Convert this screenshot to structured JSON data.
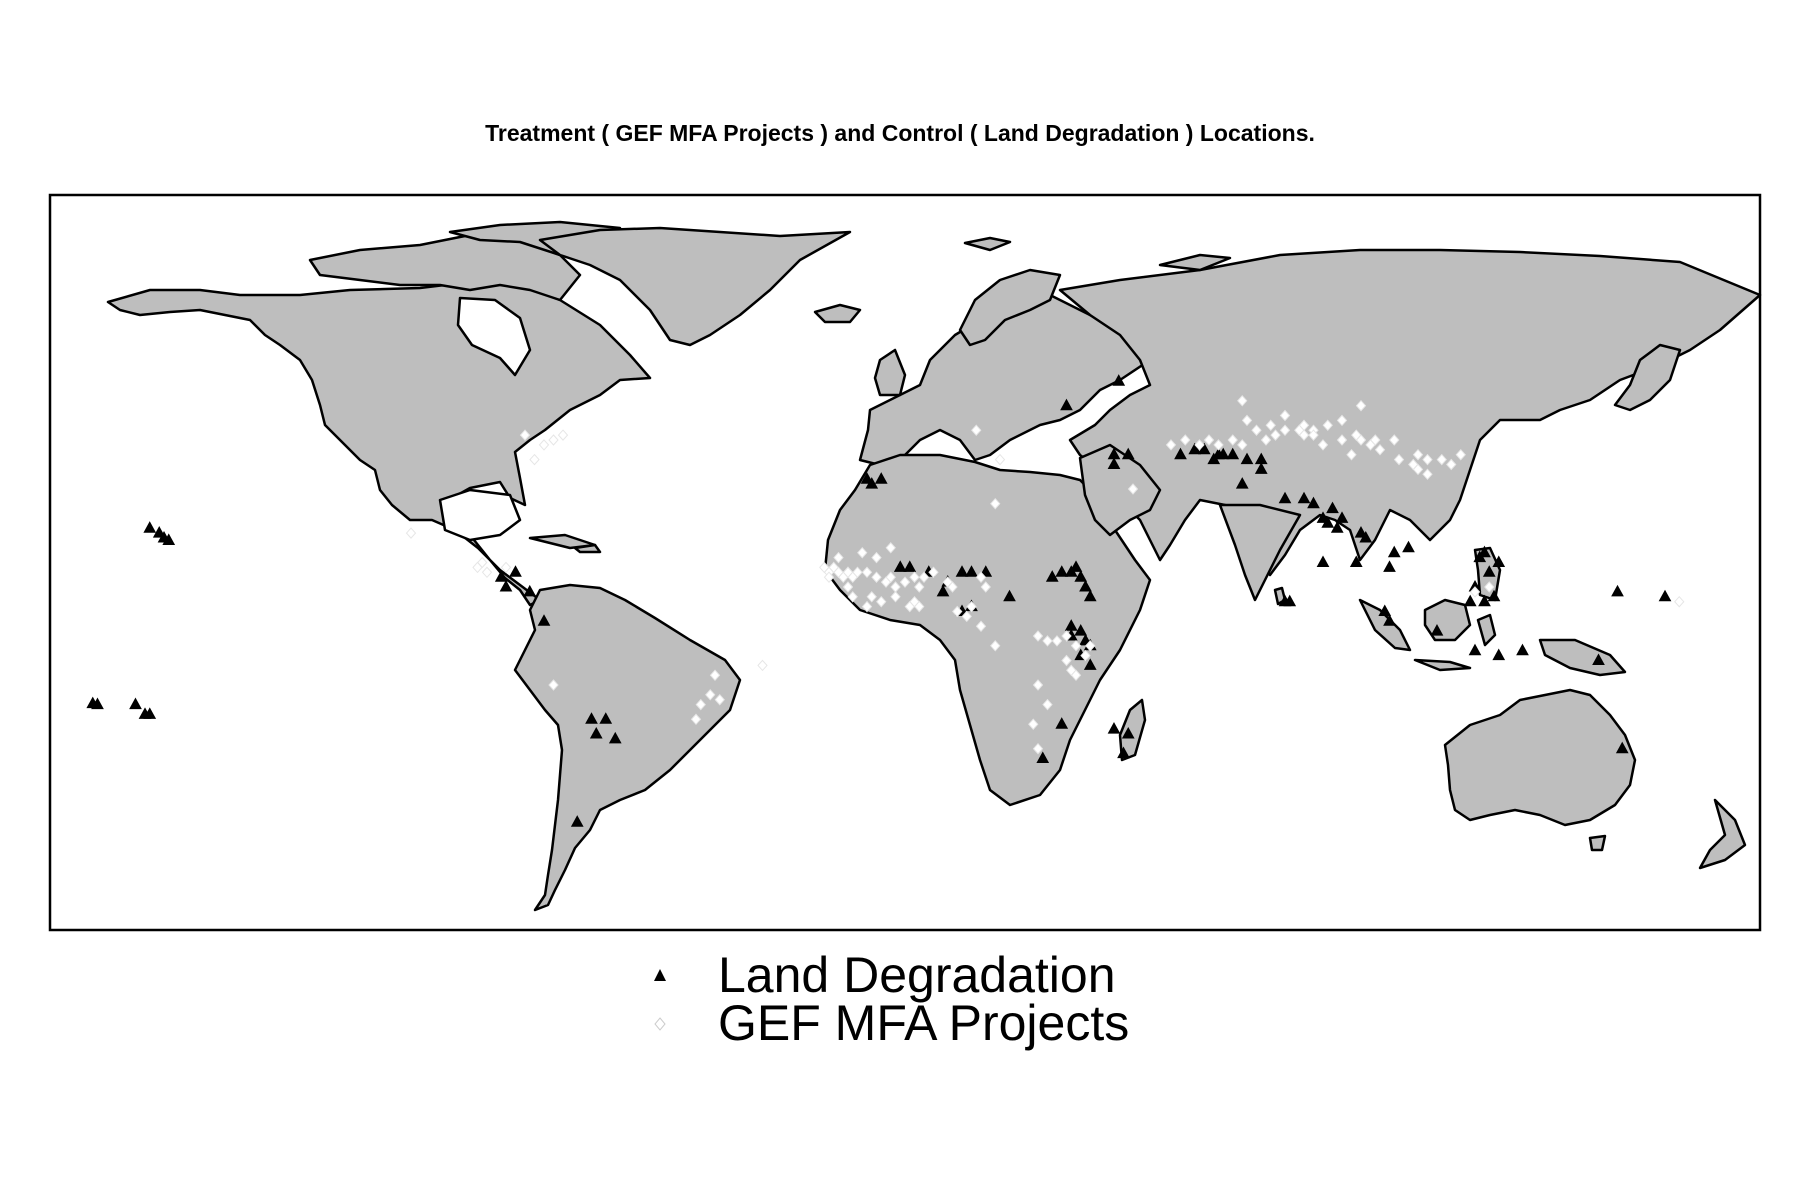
{
  "title": "Treatment ( GEF MFA Projects ) and Control ( Land Degradation ) Locations.",
  "colors": {
    "land": "#bebebe",
    "border": "#000000",
    "control": "#000000",
    "treatment": "#ffffff",
    "frame": "#000000"
  },
  "legend": [
    {
      "label": "Land Degradation",
      "symbol": "triangle-icon"
    },
    {
      "label": "GEF MFA Projects",
      "symbol": "diamond-icon"
    }
  ],
  "map": {
    "projection": "equirectangular",
    "lon_range": [
      -180,
      180
    ],
    "lat_range": [
      -60,
      90
    ],
    "control_points": [
      [
        -156,
        20
      ],
      [
        -157,
        21
      ],
      [
        -155,
        19.5
      ],
      [
        -159,
        22
      ],
      [
        -170,
        -14
      ],
      [
        -171,
        -13.8
      ],
      [
        -162,
        -14
      ],
      [
        -159,
        -16
      ],
      [
        -160,
        -16
      ],
      [
        -82,
        13
      ],
      [
        -85,
        12
      ],
      [
        -84,
        10
      ],
      [
        -79,
        9
      ],
      [
        -76,
        3
      ],
      [
        -63,
        -17
      ],
      [
        -66,
        -17
      ],
      [
        -65,
        -20
      ],
      [
        -61,
        -21
      ],
      [
        -69,
        -38
      ],
      [
        -8,
        32
      ],
      [
        -7,
        31
      ],
      [
        -5,
        32
      ],
      [
        1,
        14
      ],
      [
        -1,
        14
      ],
      [
        5,
        13
      ],
      [
        8,
        9
      ],
      [
        9,
        11
      ],
      [
        12,
        13
      ],
      [
        14,
        13
      ],
      [
        17,
        13
      ],
      [
        12,
        5
      ],
      [
        14,
        6
      ],
      [
        22,
        8
      ],
      [
        31,
        12
      ],
      [
        33,
        13
      ],
      [
        35,
        13
      ],
      [
        36,
        14
      ],
      [
        38,
        10
      ],
      [
        37,
        12
      ],
      [
        39,
        8
      ],
      [
        35,
        2
      ],
      [
        37,
        1
      ],
      [
        35,
        0
      ],
      [
        39,
        -2
      ],
      [
        38,
        -1
      ],
      [
        37,
        -4
      ],
      [
        39,
        -6
      ],
      [
        33,
        -18
      ],
      [
        29,
        -25
      ],
      [
        44,
        -19
      ],
      [
        47,
        -20
      ],
      [
        46,
        -24
      ],
      [
        44,
        35
      ],
      [
        44,
        37
      ],
      [
        47,
        37
      ],
      [
        58,
        37
      ],
      [
        61,
        38
      ],
      [
        63,
        38
      ],
      [
        65,
        36
      ],
      [
        66,
        37
      ],
      [
        67,
        37
      ],
      [
        69,
        37
      ],
      [
        72,
        36
      ],
      [
        75,
        36
      ],
      [
        75,
        34
      ],
      [
        71,
        31
      ],
      [
        80,
        28
      ],
      [
        84,
        28
      ],
      [
        86,
        27
      ],
      [
        88,
        24
      ],
      [
        89,
        23
      ],
      [
        90,
        26
      ],
      [
        92,
        24
      ],
      [
        91,
        22
      ],
      [
        88,
        15
      ],
      [
        80,
        7
      ],
      [
        81,
        7
      ],
      [
        95,
        15
      ],
      [
        96,
        21
      ],
      [
        97,
        20
      ],
      [
        102,
        14
      ],
      [
        103,
        17
      ],
      [
        106,
        18
      ],
      [
        101,
        5
      ],
      [
        102,
        3
      ],
      [
        120,
        10
      ],
      [
        123,
        13
      ],
      [
        124,
        8
      ],
      [
        122,
        17
      ],
      [
        125,
        15
      ],
      [
        121,
        16
      ],
      [
        122,
        7
      ],
      [
        119,
        7
      ],
      [
        112,
        1
      ],
      [
        120,
        -3
      ],
      [
        125,
        -4
      ],
      [
        130,
        -3
      ],
      [
        146,
        -5
      ],
      [
        150,
        9
      ],
      [
        160,
        8
      ],
      [
        151,
        -23
      ],
      [
        45,
        52
      ],
      [
        34,
        47
      ]
    ],
    "treatment_points": [
      [
        -74,
        40
      ],
      [
        -72,
        41
      ],
      [
        -76,
        39
      ],
      [
        -89,
        15
      ],
      [
        -90,
        14
      ],
      [
        -88,
        13
      ],
      [
        -104,
        21
      ],
      [
        -84,
        14
      ],
      [
        -74,
        -10
      ],
      [
        -40,
        -8
      ],
      [
        -41,
        -12
      ],
      [
        -43,
        -14
      ],
      [
        -44,
        -17
      ],
      [
        -39,
        -13
      ],
      [
        -17,
        14
      ],
      [
        -16,
        13
      ],
      [
        -15,
        14
      ],
      [
        -14,
        13
      ],
      [
        -13,
        12
      ],
      [
        -12,
        13
      ],
      [
        -11,
        12
      ],
      [
        -10,
        13
      ],
      [
        -8,
        13
      ],
      [
        -6,
        12
      ],
      [
        -4,
        11
      ],
      [
        -3,
        12
      ],
      [
        -2,
        10
      ],
      [
        0,
        11
      ],
      [
        2,
        12
      ],
      [
        3,
        10
      ],
      [
        4,
        12
      ],
      [
        6,
        13
      ],
      [
        -12,
        10
      ],
      [
        -11,
        8
      ],
      [
        -7,
        8
      ],
      [
        -5,
        7
      ],
      [
        -8,
        6
      ],
      [
        -2,
        8
      ],
      [
        1,
        6
      ],
      [
        2,
        7
      ],
      [
        3,
        6
      ],
      [
        -9,
        17
      ],
      [
        -6,
        16
      ],
      [
        -3,
        18
      ],
      [
        -12,
        13
      ],
      [
        -14,
        16
      ],
      [
        -16,
        12
      ],
      [
        9,
        11
      ],
      [
        10,
        10
      ],
      [
        11,
        5
      ],
      [
        16,
        12
      ],
      [
        17,
        10
      ],
      [
        14,
        6
      ],
      [
        13,
        4
      ],
      [
        16,
        2
      ],
      [
        19,
        -2
      ],
      [
        28,
        0
      ],
      [
        30,
        -1
      ],
      [
        32,
        -1
      ],
      [
        34,
        0
      ],
      [
        36,
        -2
      ],
      [
        34,
        -5
      ],
      [
        35,
        -7
      ],
      [
        36,
        -8
      ],
      [
        38,
        -4
      ],
      [
        39,
        -2
      ],
      [
        28,
        -10
      ],
      [
        30,
        -14
      ],
      [
        27,
        -18
      ],
      [
        28,
        -23
      ],
      [
        -30,
        -6
      ],
      [
        19,
        27
      ],
      [
        20,
        36
      ],
      [
        15,
        42
      ],
      [
        48,
        30
      ],
      [
        72,
        44
      ],
      [
        71,
        48
      ],
      [
        80,
        45
      ],
      [
        84,
        43
      ],
      [
        86,
        42
      ],
      [
        88,
        39
      ],
      [
        92,
        40
      ],
      [
        96,
        40
      ],
      [
        100,
        38
      ],
      [
        104,
        36
      ],
      [
        107,
        35
      ],
      [
        108,
        34
      ],
      [
        110,
        36
      ],
      [
        113,
        36
      ],
      [
        115,
        35
      ],
      [
        98,
        39
      ],
      [
        94,
        37
      ],
      [
        89,
        43
      ],
      [
        84,
        41
      ],
      [
        78,
        41
      ],
      [
        76,
        40
      ],
      [
        69,
        40
      ],
      [
        66,
        39
      ],
      [
        64,
        40
      ],
      [
        62,
        39
      ],
      [
        59,
        40
      ],
      [
        56,
        39
      ],
      [
        71,
        39
      ],
      [
        74,
        42
      ],
      [
        77,
        43
      ],
      [
        80,
        42
      ],
      [
        83,
        42
      ],
      [
        86,
        41
      ],
      [
        95,
        41
      ],
      [
        99,
        40
      ],
      [
        103,
        40
      ],
      [
        108,
        37
      ],
      [
        110,
        33
      ],
      [
        117,
        37
      ],
      [
        92,
        44
      ],
      [
        96,
        47
      ],
      [
        120,
        9
      ],
      [
        123,
        10
      ],
      [
        163,
        7
      ],
      [
        -78,
        36
      ],
      [
        -80,
        41
      ]
    ]
  }
}
